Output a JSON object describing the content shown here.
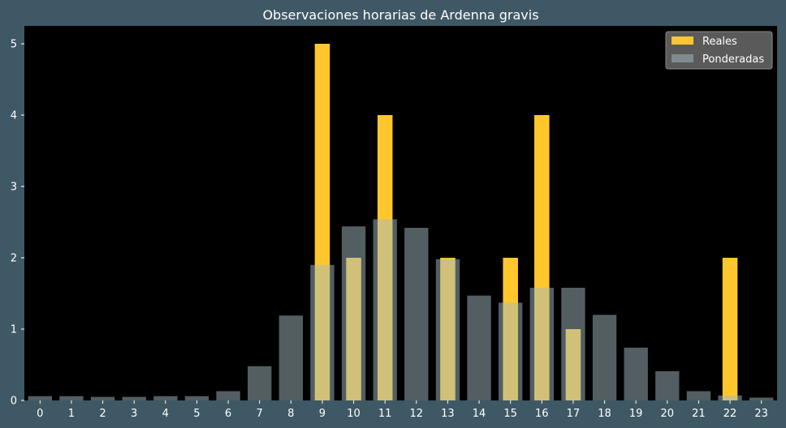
{
  "chart_data": {
    "type": "bar",
    "title": "Observaciones horarias de Ardenna gravis",
    "xlabel": "",
    "ylabel": "",
    "categories": [
      "0",
      "1",
      "2",
      "3",
      "4",
      "5",
      "6",
      "7",
      "8",
      "9",
      "10",
      "11",
      "12",
      "13",
      "14",
      "15",
      "16",
      "17",
      "18",
      "19",
      "20",
      "21",
      "22",
      "23"
    ],
    "ylim": [
      0,
      5.25
    ],
    "yticks": [
      0,
      1,
      2,
      3,
      4,
      5
    ],
    "grid": false,
    "legend_position": "top-right",
    "series": [
      {
        "name": "Reales",
        "color": "#ffc72c",
        "values": [
          0,
          0,
          0,
          0,
          0,
          0,
          0,
          0,
          0,
          5,
          2,
          4,
          0,
          2,
          0,
          2,
          4,
          1,
          0,
          0,
          0,
          0,
          2,
          0
        ]
      },
      {
        "name": "Ponderadas",
        "color": "#a4bcc4",
        "opacity": 0.5,
        "values": [
          0.06,
          0.06,
          0.05,
          0.05,
          0.06,
          0.06,
          0.13,
          0.48,
          1.19,
          1.9,
          2.44,
          2.54,
          2.42,
          1.98,
          1.47,
          1.37,
          1.58,
          1.58,
          1.2,
          0.74,
          0.41,
          0.13,
          0.07,
          0.04
        ]
      }
    ]
  },
  "colors": {
    "figure_background": "#3f5865",
    "plot_background": "#000000",
    "axis_text": "#ffffff",
    "legend_background": "#5a5a5a"
  }
}
